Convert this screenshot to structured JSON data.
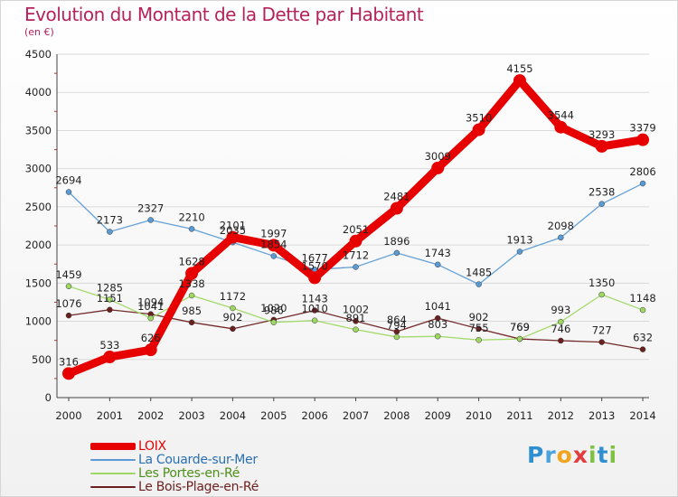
{
  "header": {
    "title": "Evolution du Montant de la Dette par Habitant",
    "unit": "(en €)"
  },
  "logo": {
    "text": "Proxiti"
  },
  "chart_data": {
    "type": "line",
    "title": "Evolution du Montant de la Dette par Habitant",
    "subtitle": "(en €)",
    "x": [
      "2000",
      "2001",
      "2002",
      "2003",
      "2004",
      "2005",
      "2006",
      "2007",
      "2008",
      "2009",
      "2010",
      "2011",
      "2012",
      "2013",
      "2014"
    ],
    "ylim": [
      0,
      4500
    ],
    "yticks": [
      0,
      500,
      1000,
      1500,
      2000,
      2500,
      3000,
      3500,
      4000,
      4500
    ],
    "grid": true,
    "legend_position": "bottom-left",
    "series": [
      {
        "name": "LOIX",
        "color": "#e60000",
        "values": [
          316,
          533,
          626,
          1628,
          2101,
          1997,
          1570,
          2051,
          2481,
          3009,
          3510,
          4155,
          3544,
          3293,
          3379
        ]
      },
      {
        "name": "La Couarde-sur-Mer",
        "color": "#5b9bd5",
        "values": [
          2694,
          2173,
          2327,
          2210,
          2035,
          1854,
          1677,
          1712,
          1896,
          1743,
          1485,
          1913,
          2098,
          2538,
          2806
        ]
      },
      {
        "name": "Les Portes-en-Ré",
        "color": "#9ed863",
        "values": [
          1459,
          1285,
          1041,
          1338,
          1172,
          986,
          1010,
          891,
          794,
          803,
          755,
          769,
          993,
          1350,
          1148
        ]
      },
      {
        "name": "Le Bois-Plage-en-Ré",
        "color": "#6b1f1f",
        "values": [
          1076,
          1151,
          1094,
          985,
          902,
          1020,
          1143,
          1002,
          864,
          1041,
          902,
          769,
          746,
          727,
          632
        ]
      }
    ]
  }
}
